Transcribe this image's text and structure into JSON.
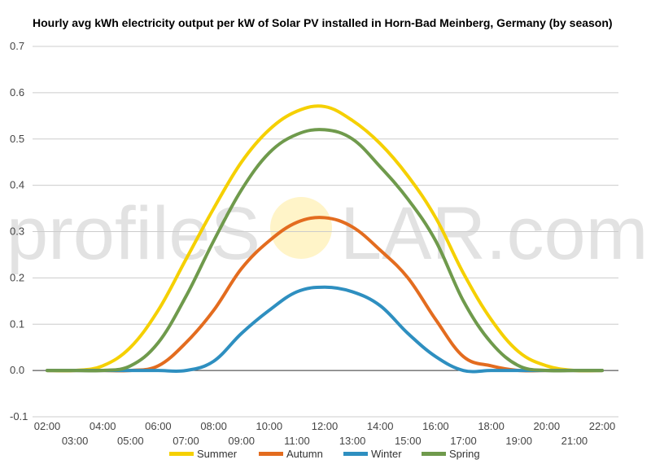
{
  "watermark": {
    "text_left": "profileS",
    "text_right": "LAR.com",
    "sun_color": "#fff3c2"
  },
  "chart_data": {
    "type": "line",
    "title": "Hourly avg kWh electricity output per kW of Solar PV installed in Horn-Bad Meinberg, Germany (by season)",
    "xlabel": "",
    "ylabel": "",
    "ylim": [
      -0.1,
      0.7
    ],
    "yticks": [
      "-0.1",
      "0.0",
      "0.1",
      "0.2",
      "0.3",
      "0.4",
      "0.5",
      "0.6",
      "0.7"
    ],
    "grid": true,
    "legend_position": "bottom",
    "x": [
      "02:00",
      "03:00",
      "04:00",
      "05:00",
      "06:00",
      "07:00",
      "08:00",
      "09:00",
      "10:00",
      "11:00",
      "12:00",
      "13:00",
      "14:00",
      "15:00",
      "16:00",
      "17:00",
      "18:00",
      "19:00",
      "20:00",
      "21:00",
      "22:00"
    ],
    "series": [
      {
        "name": "Summer",
        "color": "#f5d000",
        "values": [
          0.0,
          0.0,
          0.01,
          0.05,
          0.13,
          0.24,
          0.35,
          0.45,
          0.52,
          0.56,
          0.57,
          0.54,
          0.49,
          0.42,
          0.33,
          0.21,
          0.11,
          0.04,
          0.01,
          0.0,
          0.0
        ]
      },
      {
        "name": "Autumn",
        "color": "#e36c1f",
        "values": [
          0.0,
          0.0,
          0.0,
          0.0,
          0.01,
          0.06,
          0.13,
          0.22,
          0.28,
          0.32,
          0.33,
          0.31,
          0.26,
          0.2,
          0.11,
          0.03,
          0.01,
          0.0,
          0.0,
          0.0,
          0.0
        ]
      },
      {
        "name": "Winter",
        "color": "#2e8fc0",
        "values": [
          0.0,
          0.0,
          0.0,
          0.0,
          0.0,
          0.0,
          0.02,
          0.08,
          0.13,
          0.17,
          0.18,
          0.17,
          0.14,
          0.08,
          0.03,
          0.0,
          0.0,
          0.0,
          0.0,
          0.0,
          0.0
        ]
      },
      {
        "name": "Spring",
        "color": "#6f9a4c",
        "values": [
          0.0,
          0.0,
          0.0,
          0.01,
          0.06,
          0.16,
          0.28,
          0.39,
          0.47,
          0.51,
          0.52,
          0.5,
          0.44,
          0.37,
          0.28,
          0.15,
          0.06,
          0.01,
          0.0,
          0.0,
          0.0
        ]
      }
    ]
  }
}
